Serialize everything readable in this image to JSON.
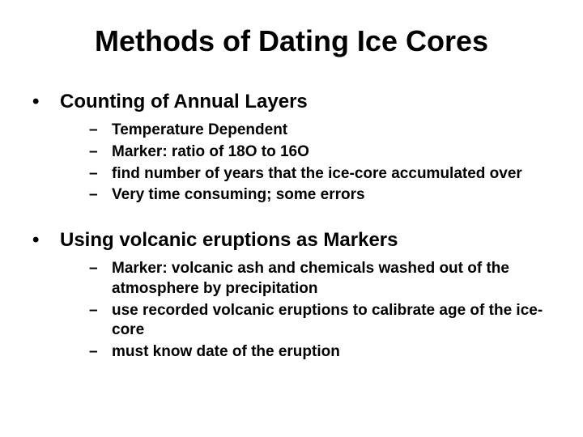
{
  "title": "Methods of Dating Ice Cores",
  "title_fontsize": 36,
  "background_color": "#ffffff",
  "text_color": "#000000",
  "font_family": "Arial",
  "level1_fontsize": 24,
  "level2_fontsize": 19,
  "bullets": [
    {
      "label": "Counting of Annual Layers",
      "sub": [
        "Temperature Dependent",
        "Marker: ratio of 18O to 16O",
        "find number of years that the ice-core accumulated over",
        "Very time consuming; some errors"
      ]
    },
    {
      "label": "Using volcanic eruptions as Markers",
      "sub": [
        "Marker: volcanic ash and chemicals washed out of the atmosphere by precipitation",
        "use recorded volcanic eruptions to calibrate age of the ice-core",
        "must know date of the eruption"
      ]
    }
  ],
  "level1_bullet_glyph": "•",
  "level2_bullet_glyph": "–"
}
